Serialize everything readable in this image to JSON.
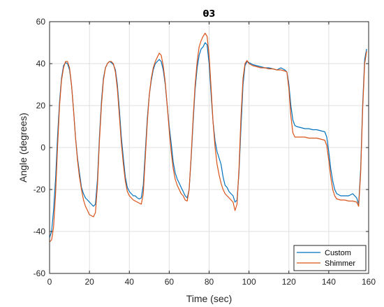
{
  "chart_data": {
    "type": "line",
    "title": "θ3",
    "xlabel": "Time (sec)",
    "ylabel": "Angle (degrees)",
    "xlim": [
      0,
      160
    ],
    "ylim": [
      -60,
      60
    ],
    "xticks": [
      0,
      20,
      40,
      60,
      80,
      100,
      120,
      140,
      160
    ],
    "yticks": [
      -60,
      -40,
      -20,
      0,
      20,
      40,
      60
    ],
    "xtick_labels": [
      "0",
      "20",
      "40",
      "60",
      "80",
      "100",
      "120",
      "140",
      "160"
    ],
    "ytick_labels": [
      "-60",
      "-40",
      "-20",
      "0",
      "20",
      "40",
      "60"
    ],
    "grid": true,
    "legend_position": "bottom-right",
    "series": [
      {
        "name": "Custom",
        "color": "#0072BD",
        "points": [
          [
            0,
            -43
          ],
          [
            1,
            -40
          ],
          [
            2,
            -30
          ],
          [
            3,
            -15
          ],
          [
            4,
            5
          ],
          [
            5,
            22
          ],
          [
            6,
            33
          ],
          [
            7,
            39
          ],
          [
            8,
            40.5
          ],
          [
            9,
            40
          ],
          [
            10,
            37
          ],
          [
            11,
            30
          ],
          [
            12,
            18
          ],
          [
            13,
            5
          ],
          [
            14,
            -5
          ],
          [
            15,
            -12
          ],
          [
            16,
            -19
          ],
          [
            17,
            -22
          ],
          [
            18,
            -24
          ],
          [
            19,
            -25
          ],
          [
            20,
            -26
          ],
          [
            21,
            -27
          ],
          [
            22,
            -28
          ],
          [
            23,
            -27
          ],
          [
            24,
            -15
          ],
          [
            25,
            5
          ],
          [
            26,
            22
          ],
          [
            27,
            33
          ],
          [
            28,
            38
          ],
          [
            29,
            40
          ],
          [
            30,
            41
          ],
          [
            31,
            40.5
          ],
          [
            32,
            39.5
          ],
          [
            33,
            37
          ],
          [
            34,
            30
          ],
          [
            35,
            18
          ],
          [
            36,
            5
          ],
          [
            37,
            -5
          ],
          [
            38,
            -14
          ],
          [
            39,
            -19
          ],
          [
            40,
            -21
          ],
          [
            41,
            -22
          ],
          [
            42,
            -23
          ],
          [
            43,
            -23
          ],
          [
            44,
            -24
          ],
          [
            45,
            -24.5
          ],
          [
            46,
            -24
          ],
          [
            47,
            -18
          ],
          [
            48,
            -2
          ],
          [
            49,
            14
          ],
          [
            50,
            25
          ],
          [
            51,
            32
          ],
          [
            52,
            37
          ],
          [
            53,
            40
          ],
          [
            54,
            41
          ],
          [
            55,
            42
          ],
          [
            56,
            41
          ],
          [
            57,
            37
          ],
          [
            58,
            30
          ],
          [
            59,
            20
          ],
          [
            60,
            10
          ],
          [
            61,
            2
          ],
          [
            62,
            -7
          ],
          [
            63,
            -12
          ],
          [
            64,
            -15
          ],
          [
            65,
            -17
          ],
          [
            66,
            -19
          ],
          [
            67,
            -21
          ],
          [
            68,
            -23
          ],
          [
            69,
            -24
          ],
          [
            70,
            -20
          ],
          [
            71,
            -5
          ],
          [
            72,
            12
          ],
          [
            73,
            28
          ],
          [
            74,
            38
          ],
          [
            75,
            44
          ],
          [
            76,
            47
          ],
          [
            77,
            48
          ],
          [
            78,
            50
          ],
          [
            79,
            49
          ],
          [
            80,
            40
          ],
          [
            81,
            25
          ],
          [
            82,
            12
          ],
          [
            83,
            3
          ],
          [
            84,
            -2
          ],
          [
            85,
            -5
          ],
          [
            86,
            -8
          ],
          [
            87,
            -14
          ],
          [
            88,
            -18
          ],
          [
            89,
            -19
          ],
          [
            90,
            -21
          ],
          [
            91,
            -22
          ],
          [
            92,
            -23
          ],
          [
            93,
            -26
          ],
          [
            94,
            -25
          ],
          [
            95,
            -12
          ],
          [
            96,
            10
          ],
          [
            97,
            30
          ],
          [
            98,
            39
          ],
          [
            99,
            41
          ],
          [
            100,
            40.5
          ],
          [
            102,
            39.5
          ],
          [
            104,
            39
          ],
          [
            106,
            38.5
          ],
          [
            108,
            38
          ],
          [
            110,
            38
          ],
          [
            112,
            37.5
          ],
          [
            114,
            37
          ],
          [
            116,
            38
          ],
          [
            118,
            37
          ],
          [
            119,
            36
          ],
          [
            120,
            30
          ],
          [
            121,
            20
          ],
          [
            122,
            13
          ],
          [
            123,
            10.5
          ],
          [
            124,
            10
          ],
          [
            126,
            9.5
          ],
          [
            128,
            9
          ],
          [
            130,
            9
          ],
          [
            132,
            8.5
          ],
          [
            134,
            8.5
          ],
          [
            136,
            8
          ],
          [
            138,
            7.5
          ],
          [
            139,
            5
          ],
          [
            140,
            -2
          ],
          [
            141,
            -10
          ],
          [
            142,
            -16
          ],
          [
            143,
            -20
          ],
          [
            144,
            -22
          ],
          [
            146,
            -23
          ],
          [
            148,
            -23
          ],
          [
            150,
            -23
          ],
          [
            152,
            -22
          ],
          [
            154,
            -24
          ],
          [
            155,
            -27
          ],
          [
            156,
            -10
          ],
          [
            157,
            20
          ],
          [
            158,
            42
          ],
          [
            159,
            47
          ]
        ]
      },
      {
        "name": "Shimmer",
        "color": "#D95319",
        "points": [
          [
            0,
            -45
          ],
          [
            1,
            -44
          ],
          [
            2,
            -38
          ],
          [
            3,
            -22
          ],
          [
            4,
            0
          ],
          [
            5,
            20
          ],
          [
            6,
            32
          ],
          [
            7,
            38
          ],
          [
            8,
            41
          ],
          [
            9,
            41
          ],
          [
            10,
            38
          ],
          [
            11,
            30
          ],
          [
            12,
            18
          ],
          [
            13,
            5
          ],
          [
            14,
            -6
          ],
          [
            15,
            -14
          ],
          [
            16,
            -20
          ],
          [
            17,
            -25
          ],
          [
            18,
            -28
          ],
          [
            19,
            -30
          ],
          [
            20,
            -32
          ],
          [
            21,
            -32.5
          ],
          [
            22,
            -33
          ],
          [
            23,
            -31
          ],
          [
            24,
            -18
          ],
          [
            25,
            3
          ],
          [
            26,
            20
          ],
          [
            27,
            32
          ],
          [
            28,
            38
          ],
          [
            29,
            40
          ],
          [
            30,
            41
          ],
          [
            31,
            41
          ],
          [
            32,
            40
          ],
          [
            33,
            36
          ],
          [
            34,
            28
          ],
          [
            35,
            15
          ],
          [
            36,
            2
          ],
          [
            37,
            -8
          ],
          [
            38,
            -16
          ],
          [
            39,
            -21
          ],
          [
            40,
            -23
          ],
          [
            41,
            -24
          ],
          [
            42,
            -25
          ],
          [
            43,
            -25.5
          ],
          [
            44,
            -26
          ],
          [
            45,
            -26.5
          ],
          [
            46,
            -27
          ],
          [
            47,
            -22
          ],
          [
            48,
            -5
          ],
          [
            49,
            12
          ],
          [
            50,
            25
          ],
          [
            51,
            33
          ],
          [
            52,
            38
          ],
          [
            53,
            41
          ],
          [
            54,
            43
          ],
          [
            55,
            45
          ],
          [
            56,
            44
          ],
          [
            57,
            39
          ],
          [
            58,
            31
          ],
          [
            59,
            20
          ],
          [
            60,
            8
          ],
          [
            61,
            -2
          ],
          [
            62,
            -10
          ],
          [
            63,
            -15
          ],
          [
            64,
            -18
          ],
          [
            65,
            -20
          ],
          [
            66,
            -22
          ],
          [
            67,
            -23
          ],
          [
            68,
            -25
          ],
          [
            69,
            -25.5
          ],
          [
            70,
            -20
          ],
          [
            71,
            -4
          ],
          [
            72,
            14
          ],
          [
            73,
            30
          ],
          [
            74,
            41
          ],
          [
            75,
            48
          ],
          [
            76,
            51
          ],
          [
            77,
            53
          ],
          [
            78,
            54.5
          ],
          [
            79,
            53
          ],
          [
            80,
            44
          ],
          [
            81,
            28
          ],
          [
            82,
            12
          ],
          [
            83,
            0
          ],
          [
            84,
            -8
          ],
          [
            85,
            -13
          ],
          [
            86,
            -17
          ],
          [
            87,
            -20
          ],
          [
            88,
            -22
          ],
          [
            89,
            -23
          ],
          [
            90,
            -24
          ],
          [
            91,
            -25
          ],
          [
            92,
            -26
          ],
          [
            93,
            -30
          ],
          [
            94,
            -27
          ],
          [
            95,
            -10
          ],
          [
            96,
            15
          ],
          [
            97,
            33
          ],
          [
            98,
            40
          ],
          [
            99,
            41.5
          ],
          [
            100,
            40
          ],
          [
            102,
            39
          ],
          [
            104,
            38.5
          ],
          [
            106,
            38
          ],
          [
            108,
            38
          ],
          [
            110,
            37.5
          ],
          [
            112,
            37.5
          ],
          [
            114,
            37
          ],
          [
            116,
            37
          ],
          [
            118,
            36.5
          ],
          [
            119,
            36
          ],
          [
            120,
            28
          ],
          [
            121,
            15
          ],
          [
            122,
            7
          ],
          [
            123,
            5
          ],
          [
            124,
            5
          ],
          [
            126,
            5
          ],
          [
            128,
            5
          ],
          [
            130,
            4.5
          ],
          [
            132,
            4.5
          ],
          [
            134,
            4.5
          ],
          [
            136,
            4
          ],
          [
            138,
            3.5
          ],
          [
            139,
            1
          ],
          [
            140,
            -6
          ],
          [
            141,
            -14
          ],
          [
            142,
            -20
          ],
          [
            143,
            -23
          ],
          [
            144,
            -24.5
          ],
          [
            146,
            -25
          ],
          [
            148,
            -25
          ],
          [
            150,
            -25.5
          ],
          [
            152,
            -25.5
          ],
          [
            154,
            -26
          ],
          [
            155,
            -28
          ],
          [
            156,
            -12
          ],
          [
            157,
            18
          ],
          [
            158,
            40
          ],
          [
            159,
            46
          ]
        ]
      }
    ]
  }
}
